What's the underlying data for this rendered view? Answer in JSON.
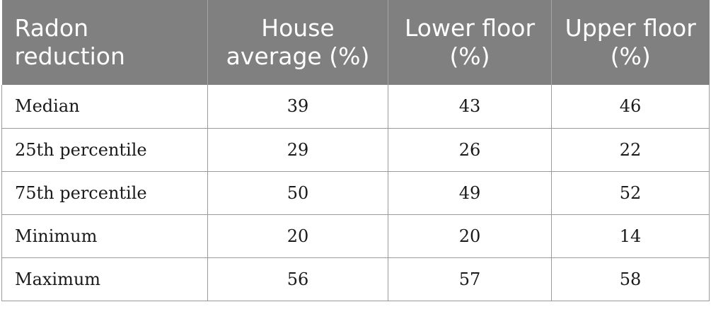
{
  "table": {
    "headers": [
      "Radon reduction",
      "House average (%)",
      "Lower floor (%)",
      "Upper floor (%)"
    ],
    "rows": [
      [
        "Median",
        "39",
        "43",
        "46"
      ],
      [
        "25th percentile",
        "29",
        "26",
        "22"
      ],
      [
        "75th percentile",
        "50",
        "49",
        "52"
      ],
      [
        "Minimum",
        "20",
        "20",
        "14"
      ],
      [
        "Maximum",
        "56",
        "57",
        "58"
      ]
    ]
  },
  "colors": {
    "header_bg": "#808080",
    "header_text": "#ffffff",
    "border": "#9a9a9a"
  }
}
